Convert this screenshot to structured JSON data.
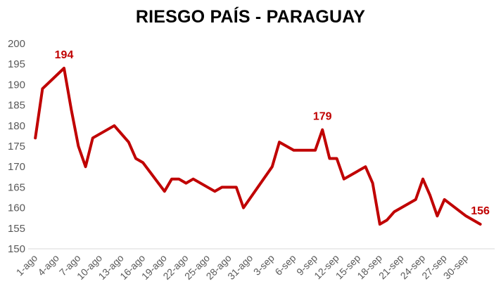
{
  "chart_data": {
    "type": "line",
    "title": "RIESGO PAÍS - PARAGUAY",
    "xlabel": "",
    "ylabel": "",
    "ylim": [
      150,
      200
    ],
    "yticks": [
      150,
      155,
      160,
      165,
      170,
      175,
      180,
      185,
      190,
      195,
      200
    ],
    "x_tick_labels": [
      "1-ago",
      "4-ago",
      "7-ago",
      "10-ago",
      "13-ago",
      "16-ago",
      "19-ago",
      "22-ago",
      "25-ago",
      "28-ago",
      "31-ago",
      "3-sep",
      "6-sep",
      "9-sep",
      "12-sep",
      "15-sep",
      "18-sep",
      "21-sep",
      "24-sep",
      "27-sep",
      "30-sep"
    ],
    "grid": false,
    "legend": "none",
    "line_color": "#C00000",
    "series": [
      {
        "x": [
          "2024-08-01",
          "2024-08-02",
          "2024-08-05",
          "2024-08-06",
          "2024-08-07",
          "2024-08-08",
          "2024-08-09",
          "2024-08-12",
          "2024-08-13",
          "2024-08-14",
          "2024-08-15",
          "2024-08-16",
          "2024-08-19",
          "2024-08-20",
          "2024-08-21",
          "2024-08-22",
          "2024-08-23",
          "2024-08-26",
          "2024-08-27",
          "2024-08-28",
          "2024-08-29",
          "2024-08-30",
          "2024-09-03",
          "2024-09-04",
          "2024-09-05",
          "2024-09-06",
          "2024-09-09",
          "2024-09-10",
          "2024-09-11",
          "2024-09-12",
          "2024-09-13",
          "2024-09-16",
          "2024-09-17",
          "2024-09-18",
          "2024-09-19",
          "2024-09-20",
          "2024-09-23",
          "2024-09-24",
          "2024-09-25",
          "2024-09-26",
          "2024-09-27",
          "2024-09-30",
          "2024-10-01",
          "2024-10-02"
        ],
        "values": [
          177,
          189,
          194,
          184,
          175,
          170,
          177,
          180,
          178,
          176,
          172,
          171,
          164,
          167,
          167,
          166,
          167,
          164,
          165,
          165,
          165,
          160,
          170,
          176,
          175,
          174,
          174,
          179,
          172,
          172,
          167,
          170,
          166,
          156,
          157,
          159,
          162,
          167,
          163,
          158,
          162,
          158,
          157,
          156
        ]
      }
    ],
    "annotations": [
      {
        "x": "2024-08-05",
        "y": 194,
        "text": "194"
      },
      {
        "x": "2024-09-10",
        "y": 179,
        "text": "179"
      },
      {
        "x": "2024-10-02",
        "y": 156,
        "text": "156"
      }
    ]
  }
}
